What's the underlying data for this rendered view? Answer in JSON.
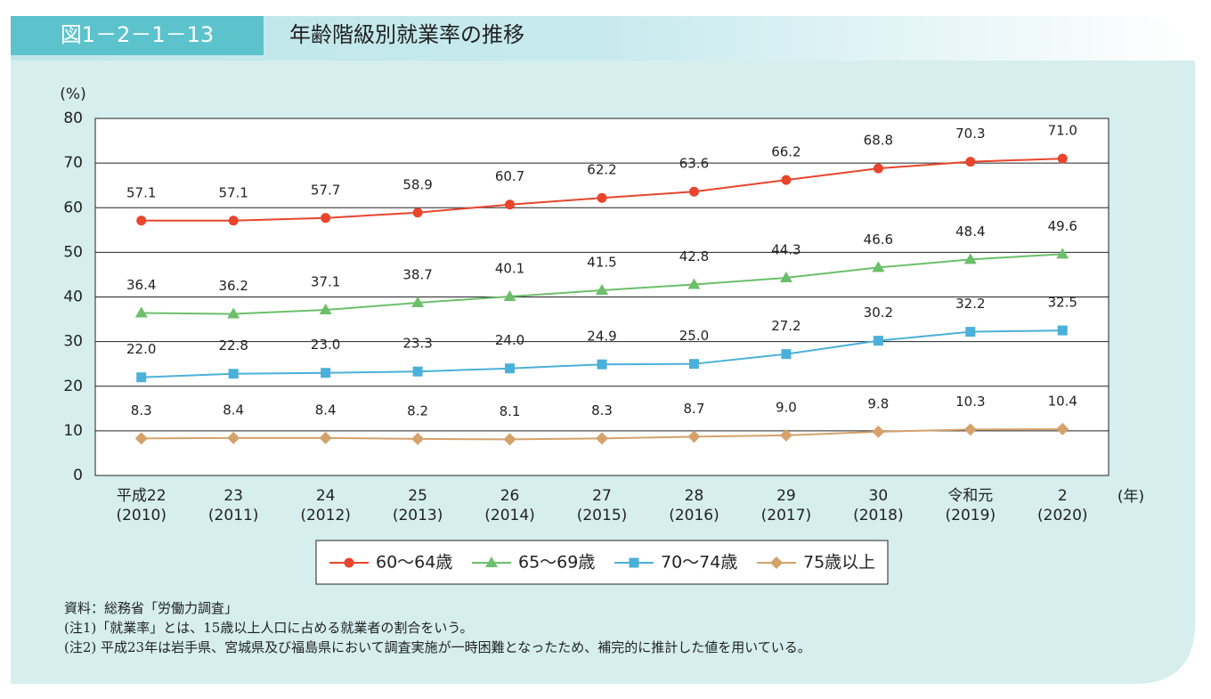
{
  "chart_data": {
    "type": "line",
    "figure_number": "図1－2－1－13",
    "title": "年齢階級別就業率の推移",
    "y_unit": "(%)",
    "x_unit": "(年)",
    "categories": [
      "平成22",
      "23",
      "24",
      "25",
      "26",
      "27",
      "28",
      "29",
      "30",
      "令和元",
      "2"
    ],
    "category_sublabels": [
      "(2010)",
      "(2011)",
      "(2012)",
      "(2013)",
      "(2014)",
      "(2015)",
      "(2016)",
      "(2017)",
      "(2018)",
      "(2019)",
      "(2020)"
    ],
    "ylim": [
      0,
      80
    ],
    "yticks": [
      0,
      10,
      20,
      30,
      40,
      50,
      60,
      70,
      80
    ],
    "grid": true,
    "series": [
      {
        "name": "60～64歳",
        "color": "#e8452c",
        "marker": "circle",
        "values": [
          57.1,
          57.1,
          57.7,
          58.9,
          60.7,
          62.2,
          63.6,
          66.2,
          68.8,
          70.3,
          71.0
        ],
        "value_labels": [
          "57.1",
          "57.1",
          "57.7",
          "58.9",
          "60.7",
          "62.2",
          "63.6",
          "66.2",
          "68.8",
          "70.3",
          "71.0"
        ]
      },
      {
        "name": "65～69歳",
        "color": "#6cbf6a",
        "marker": "triangle",
        "values": [
          36.4,
          36.2,
          37.1,
          38.7,
          40.1,
          41.5,
          42.8,
          44.3,
          46.6,
          48.4,
          49.6
        ],
        "value_labels": [
          "36.4",
          "36.2",
          "37.1",
          "38.7",
          "40.1",
          "41.5",
          "42.8",
          "44.3",
          "46.6",
          "48.4",
          "49.6"
        ]
      },
      {
        "name": "70～74歳",
        "color": "#4ab0d9",
        "marker": "square",
        "values": [
          22.0,
          22.8,
          23.0,
          23.3,
          24.0,
          24.9,
          25.0,
          27.2,
          30.2,
          32.2,
          32.5
        ],
        "value_labels": [
          "22.0",
          "22.8",
          "23.0",
          "23.3",
          "24.0",
          "24.9",
          "25.0",
          "27.2",
          "30.2",
          "32.2",
          "32.5"
        ]
      },
      {
        "name": "75歳以上",
        "color": "#d4a26a",
        "marker": "diamond",
        "values": [
          8.3,
          8.4,
          8.4,
          8.2,
          8.1,
          8.3,
          8.7,
          9.0,
          9.8,
          10.3,
          10.4
        ],
        "value_labels": [
          "8.3",
          "8.4",
          "8.4",
          "8.2",
          "8.1",
          "8.3",
          "8.7",
          "9.0",
          "9.8",
          "10.3",
          "10.4"
        ]
      }
    ],
    "notes": [
      "資料：総務省「労働力調査」",
      "(注1)「就業率」とは、15歳以上人口に占める就業者の割合をいう。",
      "(注2) 平成23年は岩手県、宮城県及び福島県において調査実施が一時困難となったため、補完的に推計した値を用いている。"
    ]
  }
}
